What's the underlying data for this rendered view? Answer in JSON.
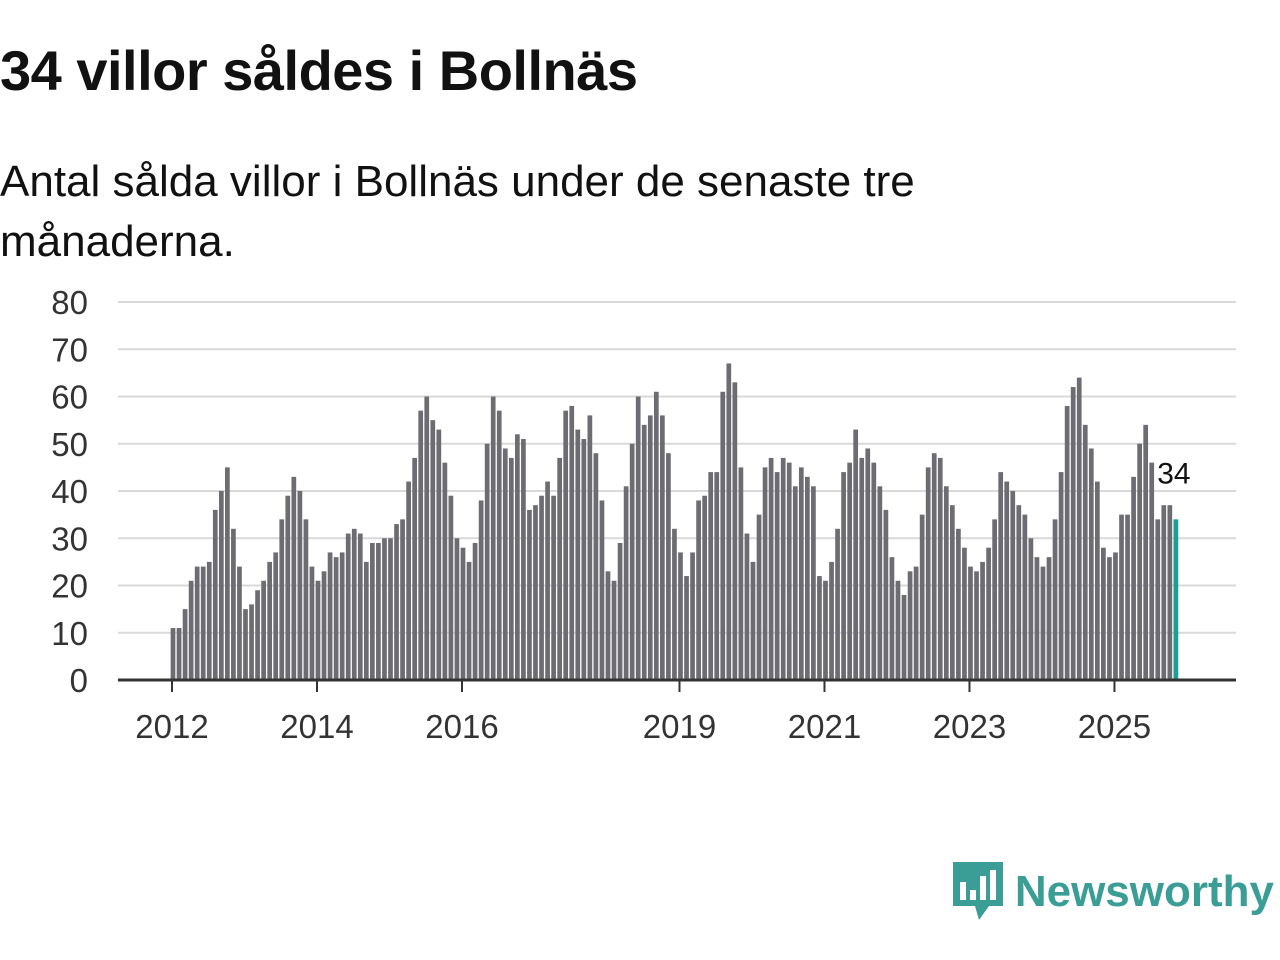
{
  "colors": {
    "bar": "#6d6c72",
    "highlight": "#1a9e96",
    "grid": "#d9d9d9",
    "axis": "#333333",
    "brand": "#3a9e96"
  },
  "brand": {
    "name": "Newsworthy",
    "icon": "newsworthy-logo-icon"
  },
  "chart_data": {
    "type": "bar",
    "title": "34 villor såldes i Bollnäs",
    "subtitle": "Antal sålda villor i Bollnäs under de senaste tre månaderna.",
    "xlabel": "",
    "ylabel": "",
    "ylim": [
      0,
      80
    ],
    "yticks": [
      0,
      10,
      20,
      30,
      40,
      50,
      60,
      70,
      80
    ],
    "xticks": [
      "2012",
      "2014",
      "2016",
      "2019",
      "2021",
      "2023",
      "2025"
    ],
    "start_month": "2012-01",
    "values": [
      11,
      11,
      15,
      21,
      24,
      24,
      25,
      36,
      40,
      45,
      32,
      24,
      15,
      16,
      19,
      21,
      25,
      27,
      34,
      39,
      43,
      40,
      34,
      24,
      21,
      23,
      27,
      26,
      27,
      31,
      32,
      31,
      25,
      29,
      29,
      30,
      30,
      33,
      34,
      42,
      47,
      57,
      60,
      55,
      53,
      46,
      39,
      30,
      28,
      25,
      29,
      38,
      50,
      60,
      57,
      49,
      47,
      52,
      51,
      36,
      37,
      39,
      42,
      39,
      47,
      57,
      58,
      53,
      51,
      56,
      48,
      38,
      23,
      21,
      29,
      41,
      50,
      60,
      54,
      56,
      61,
      56,
      48,
      32,
      27,
      22,
      27,
      38,
      39,
      44,
      44,
      61,
      67,
      63,
      45,
      31,
      25,
      35,
      45,
      47,
      44,
      47,
      46,
      41,
      45,
      43,
      41,
      22,
      21,
      25,
      32,
      44,
      46,
      53,
      47,
      49,
      46,
      41,
      36,
      26,
      21,
      18,
      23,
      24,
      35,
      45,
      48,
      47,
      41,
      37,
      32,
      28,
      24,
      23,
      25,
      28,
      34,
      44,
      42,
      40,
      37,
      35,
      30,
      26,
      24,
      26,
      34,
      44,
      58,
      62,
      64,
      54,
      49,
      42,
      28,
      26,
      27,
      35,
      35,
      43,
      50,
      54,
      46,
      34,
      37,
      37,
      34
    ],
    "highlight_label": "34"
  }
}
